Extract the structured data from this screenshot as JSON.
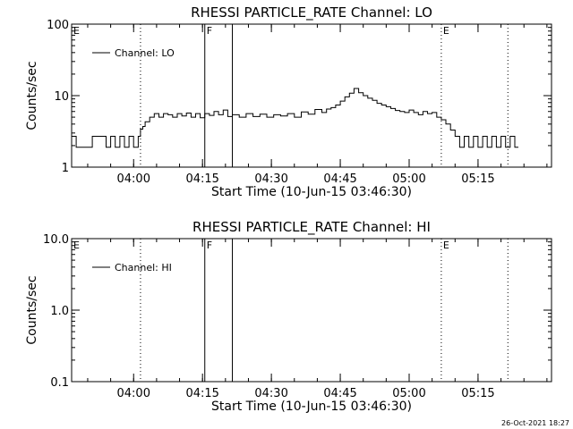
{
  "chart_data": [
    {
      "type": "line",
      "title": "RHESSI PARTICLE_RATE Channel: LO",
      "xlabel": "Start Time (10-Jun-15 03:46:30)",
      "ylabel": "Counts/sec",
      "y_scale": "log",
      "ylim": [
        1,
        100
      ],
      "y_ticks": [
        1,
        10,
        100
      ],
      "y_tick_labels": [
        "1",
        "10",
        "100"
      ],
      "xlim": [
        "03:46:30",
        "05:31:00"
      ],
      "x_ticks": [
        "04:00",
        "04:15",
        "04:30",
        "04:45",
        "05:00",
        "05:15"
      ],
      "legend": {
        "placement": "top-left",
        "entries": [
          "Channel: LO"
        ]
      },
      "markers": [
        {
          "label": "E",
          "time": "03:46:30",
          "style": "none"
        },
        {
          "label": "",
          "time": "04:01:30",
          "style": "dotted"
        },
        {
          "label": "F",
          "time": "04:15:30",
          "style": "solid"
        },
        {
          "label": "",
          "time": "04:21:30",
          "style": "solid"
        },
        {
          "label": "E",
          "time": "05:07:00",
          "style": "dotted"
        },
        {
          "label": "",
          "time": "05:21:30",
          "style": "dotted"
        }
      ],
      "series": [
        {
          "name": "Channel: LO",
          "x": [
            "03:46:30",
            "03:47:30",
            "03:48:30",
            "03:50:00",
            "03:51:00",
            "03:52:00",
            "03:53:00",
            "03:54:00",
            "03:55:00",
            "03:56:00",
            "03:57:00",
            "03:58:00",
            "03:59:00",
            "04:00:00",
            "04:01:00",
            "04:01:30",
            "04:02:00",
            "04:02:30",
            "04:03:30",
            "04:04:30",
            "04:05:30",
            "04:06:30",
            "04:07:30",
            "04:08:30",
            "04:09:30",
            "04:10:30",
            "04:11:30",
            "04:12:30",
            "04:13:30",
            "04:14:30",
            "04:15:30",
            "04:16:30",
            "04:17:30",
            "04:18:30",
            "04:19:30",
            "04:20:30",
            "04:21:30",
            "04:23:00",
            "04:24:30",
            "04:26:00",
            "04:27:30",
            "04:29:00",
            "04:30:30",
            "04:32:00",
            "04:33:30",
            "04:35:00",
            "04:36:30",
            "04:38:00",
            "04:39:30",
            "04:41:00",
            "04:42:00",
            "04:43:00",
            "04:44:00",
            "04:45:00",
            "04:46:00",
            "04:47:00",
            "04:48:00",
            "04:49:00",
            "04:50:00",
            "04:51:00",
            "04:52:00",
            "04:53:00",
            "04:54:00",
            "04:55:00",
            "04:56:00",
            "04:57:00",
            "04:58:00",
            "04:59:00",
            "05:00:00",
            "05:01:00",
            "05:02:00",
            "05:03:00",
            "05:04:00",
            "05:05:00",
            "05:06:00",
            "05:07:00",
            "05:08:00",
            "05:09:00",
            "05:10:00",
            "05:11:00",
            "05:12:00",
            "05:13:00",
            "05:14:00",
            "05:15:00",
            "05:16:00",
            "05:17:00",
            "05:18:00",
            "05:19:00",
            "05:20:00",
            "05:21:00",
            "05:22:00",
            "05:23:00"
          ],
          "y": [
            2.7,
            1.9,
            1.9,
            1.9,
            2.7,
            2.7,
            2.7,
            1.9,
            2.7,
            1.9,
            2.7,
            1.9,
            2.7,
            1.9,
            2.7,
            3.4,
            3.7,
            4.3,
            5.0,
            5.6,
            5.0,
            5.6,
            5.4,
            5.0,
            5.6,
            5.2,
            5.7,
            5.0,
            5.6,
            4.9,
            5.6,
            5.3,
            6.0,
            5.4,
            6.3,
            5.1,
            5.4,
            5.0,
            5.6,
            5.1,
            5.5,
            5.0,
            5.4,
            5.2,
            5.6,
            5.0,
            5.9,
            5.5,
            6.4,
            5.8,
            6.5,
            6.8,
            7.4,
            8.4,
            9.6,
            10.8,
            12.6,
            11.0,
            10.0,
            9.2,
            8.6,
            7.8,
            7.4,
            7.0,
            6.6,
            6.2,
            6.0,
            5.8,
            6.3,
            5.8,
            5.4,
            6.0,
            5.6,
            5.8,
            5.0,
            4.6,
            4.0,
            3.3,
            2.7,
            1.9,
            2.7,
            1.9,
            2.7,
            1.9,
            2.7,
            1.9,
            2.7,
            1.9,
            2.7,
            1.9,
            2.7,
            1.9
          ]
        }
      ]
    },
    {
      "type": "line",
      "title": "RHESSI PARTICLE_RATE Channel: HI",
      "xlabel": "Start Time (10-Jun-15 03:46:30)",
      "ylabel": "Counts/sec",
      "y_scale": "log",
      "ylim": [
        0.1,
        10
      ],
      "y_ticks": [
        0.1,
        1,
        10
      ],
      "y_tick_labels": [
        "0.1",
        "1.0",
        "10.0"
      ],
      "xlim": [
        "03:46:30",
        "05:31:00"
      ],
      "x_ticks": [
        "04:00",
        "04:15",
        "04:30",
        "04:45",
        "05:00",
        "05:15"
      ],
      "legend": {
        "placement": "top-left",
        "entries": [
          "Channel: HI"
        ]
      },
      "markers": [
        {
          "label": "E",
          "time": "03:46:30",
          "style": "none"
        },
        {
          "label": "",
          "time": "04:01:30",
          "style": "dotted"
        },
        {
          "label": "F",
          "time": "04:15:30",
          "style": "solid"
        },
        {
          "label": "",
          "time": "04:21:30",
          "style": "solid"
        },
        {
          "label": "E",
          "time": "05:07:00",
          "style": "dotted"
        },
        {
          "label": "",
          "time": "05:21:30",
          "style": "dotted"
        }
      ],
      "series": [
        {
          "name": "Channel: HI",
          "x": [],
          "y": []
        }
      ]
    }
  ],
  "footer": {
    "timestamp": "26-Oct-2021 18:27"
  }
}
